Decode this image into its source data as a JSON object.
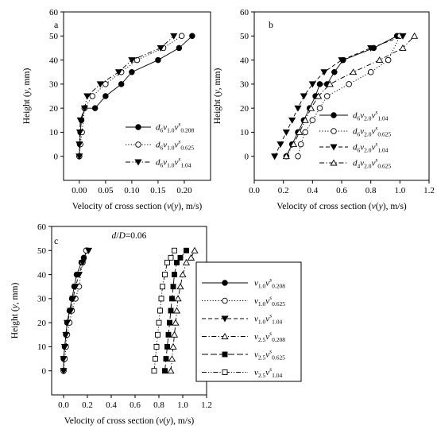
{
  "figure": {
    "ylabel_plain": "Height (",
    "ylabel_italic": "y",
    "ylabel_tail": ", mm)",
    "xlabel_plain": "Velocity of cross section (",
    "xlabel_italic": "v",
    "xlabel_mid": "(",
    "xlabel_italic2": "y",
    "xlabel_tail": "), m/s)"
  },
  "chart_data": [
    {
      "type": "line",
      "panel_label": "a",
      "annotation": "",
      "xlim": [
        -0.03,
        0.25
      ],
      "ylim": [
        -10,
        60
      ],
      "xticks": [
        0.0,
        0.05,
        0.1,
        0.15,
        0.2
      ],
      "xtick_labels": [
        "0.00",
        "0.05",
        "0.10",
        "0.15",
        "0.20"
      ],
      "yticks": [
        0,
        10,
        20,
        30,
        40,
        50,
        60
      ],
      "ytick_labels": [
        "0",
        "10",
        "20",
        "30",
        "40",
        "50",
        "60"
      ],
      "legend": "inside-right",
      "series": [
        {
          "d": "6",
          "v": "1.0",
          "s": "0.208",
          "marker": "circle-filled",
          "dash": "solid",
          "x": [
            0.0,
            0.001,
            0.002,
            0.004,
            0.01,
            0.03,
            0.05,
            0.08,
            0.1,
            0.15,
            0.19,
            0.215
          ],
          "y": [
            0,
            5,
            10,
            15,
            20,
            20,
            25,
            30,
            35,
            40,
            45,
            50
          ]
        },
        {
          "d": "6",
          "v": "1.0",
          "s": "0.625",
          "marker": "circle-open",
          "dash": "dot",
          "x": [
            0.0,
            0.002,
            0.005,
            0.01,
            0.025,
            0.05,
            0.08,
            0.11,
            0.16,
            0.195
          ],
          "y": [
            0,
            5,
            10,
            20,
            25,
            30,
            35,
            40,
            45,
            50
          ]
        },
        {
          "d": "6",
          "v": "1.0",
          "s": "1.04",
          "marker": "triangle-down-filled",
          "dash": "dashdot",
          "x": [
            0.0,
            0.0,
            0.001,
            0.002,
            0.01,
            0.015,
            0.04,
            0.075,
            0.1,
            0.155,
            0.18
          ],
          "y": [
            0,
            5,
            10,
            15,
            20,
            25,
            30,
            35,
            40,
            45,
            50
          ]
        }
      ]
    },
    {
      "type": "line",
      "panel_label": "b",
      "annotation": "",
      "xlim": [
        0.0,
        1.2
      ],
      "ylim": [
        -10,
        60
      ],
      "xticks": [
        0.0,
        0.2,
        0.4,
        0.6,
        0.8,
        1.0,
        1.2
      ],
      "xtick_labels": [
        "0.0",
        "0.2",
        "0.4",
        "0.6",
        "0.8",
        "1.0",
        "1.2"
      ],
      "yticks": [
        0,
        10,
        20,
        30,
        40,
        50,
        60
      ],
      "ytick_labels": [
        "0",
        "10",
        "20",
        "30",
        "40",
        "50",
        "60"
      ],
      "legend": "inside-right",
      "series": [
        {
          "d": "6",
          "v": "2.0",
          "s": "1.04",
          "marker": "circle-filled",
          "dash": "solid",
          "x": [
            0.22,
            0.26,
            0.3,
            0.34,
            0.38,
            0.42,
            0.45,
            0.5,
            0.55,
            0.61,
            0.82,
            0.98
          ],
          "y": [
            0,
            5,
            10,
            15,
            20,
            25,
            30,
            30,
            35,
            40,
            45,
            50
          ]
        },
        {
          "d": "6",
          "v": "2.0",
          "s": "0.625",
          "marker": "circle-open",
          "dash": "dot",
          "x": [
            0.3,
            0.32,
            0.35,
            0.4,
            0.45,
            0.5,
            0.65,
            0.8,
            0.92,
            1.0
          ],
          "y": [
            0,
            5,
            10,
            15,
            20,
            25,
            30,
            35,
            40,
            50
          ]
        },
        {
          "d": "6",
          "v": "2.0",
          "s": "1.04",
          "marker": "triangle-down-filled",
          "dash": "dash",
          "x": [
            0.14,
            0.18,
            0.22,
            0.26,
            0.3,
            0.34,
            0.4,
            0.48,
            0.6,
            0.8,
            1.02
          ],
          "y": [
            0,
            5,
            10,
            15,
            20,
            25,
            30,
            35,
            40,
            45,
            50
          ]
        },
        {
          "d": "4",
          "v": "2.0",
          "s": "0.625",
          "marker": "triangle-up-open",
          "dash": "dashdot",
          "x": [
            0.22,
            0.27,
            0.31,
            0.35,
            0.39,
            0.44,
            0.52,
            0.68,
            0.86,
            1.02,
            1.1
          ],
          "y": [
            0,
            5,
            10,
            15,
            20,
            25,
            30,
            35,
            40,
            45,
            50
          ]
        }
      ]
    },
    {
      "type": "line",
      "panel_label": "c",
      "annotation": "d/D=0.06",
      "xlim": [
        -0.1,
        1.2
      ],
      "ylim": [
        -10,
        60
      ],
      "xticks": [
        0.0,
        0.2,
        0.4,
        0.6,
        0.8,
        1.0,
        1.2
      ],
      "xtick_labels": [
        "0.0",
        "0.2",
        "0.4",
        "0.6",
        "0.8",
        "1.0",
        "1.2"
      ],
      "yticks": [
        0,
        10,
        20,
        30,
        40,
        50,
        60
      ],
      "ytick_labels": [
        "0",
        "10",
        "20",
        "30",
        "40",
        "50",
        "60"
      ],
      "legend": "outside-right",
      "series": [
        {
          "v": "1.0",
          "s": "0.208",
          "marker": "circle-filled",
          "dash": "solid",
          "x": [
            0.0,
            0.0,
            0.01,
            0.02,
            0.03,
            0.05,
            0.07,
            0.09,
            0.11,
            0.15,
            0.17,
            0.2
          ],
          "y": [
            0,
            5,
            10,
            15,
            20,
            25,
            30,
            35,
            40,
            45,
            47,
            50
          ]
        },
        {
          "v": "1.0",
          "s": "0.625",
          "marker": "circle-open",
          "dash": "dot",
          "x": [
            0.0,
            0.01,
            0.02,
            0.03,
            0.05,
            0.07,
            0.1,
            0.13,
            0.16,
            0.19
          ],
          "y": [
            0,
            5,
            10,
            15,
            20,
            25,
            30,
            35,
            45,
            50
          ]
        },
        {
          "v": "1.0",
          "s": "1.04",
          "marker": "triangle-down-filled",
          "dash": "dash",
          "x": [
            0.0,
            0.0,
            0.01,
            0.02,
            0.03,
            0.06,
            0.08,
            0.1,
            0.13,
            0.16,
            0.21
          ],
          "y": [
            0,
            5,
            10,
            15,
            20,
            25,
            30,
            35,
            40,
            45,
            50
          ]
        },
        {
          "v": "2.5",
          "s": "0.208",
          "marker": "triangle-up-open",
          "dash": "dashdot",
          "x": [
            0.9,
            0.91,
            0.92,
            0.93,
            0.94,
            0.95,
            0.96,
            0.98,
            1.0,
            1.03,
            1.07,
            1.1
          ],
          "y": [
            0,
            5,
            10,
            15,
            20,
            25,
            30,
            35,
            40,
            45,
            47,
            50
          ]
        },
        {
          "v": "2.5",
          "s": "0.625",
          "marker": "square-filled",
          "dash": "longdash",
          "x": [
            0.85,
            0.86,
            0.87,
            0.88,
            0.89,
            0.9,
            0.91,
            0.92,
            0.93,
            0.95,
            0.98,
            1.03
          ],
          "y": [
            0,
            5,
            10,
            15,
            20,
            25,
            30,
            35,
            40,
            45,
            47,
            50
          ]
        },
        {
          "v": "2.5",
          "s": "1.04",
          "marker": "square-open",
          "dash": "dashdotdot",
          "x": [
            0.76,
            0.77,
            0.78,
            0.79,
            0.8,
            0.81,
            0.82,
            0.83,
            0.85,
            0.87,
            0.9,
            0.93
          ],
          "y": [
            0,
            5,
            10,
            15,
            20,
            25,
            30,
            35,
            40,
            45,
            47,
            50
          ]
        }
      ]
    }
  ]
}
